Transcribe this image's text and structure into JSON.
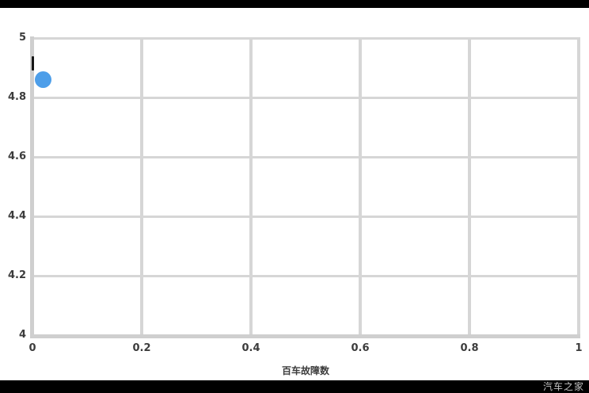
{
  "chart_data": {
    "type": "scatter",
    "title": "",
    "xlabel": "百车故障数",
    "ylabel": "",
    "xlim": [
      0,
      1
    ],
    "ylim": [
      4,
      5
    ],
    "grid": true,
    "legend": false,
    "x_ticks": {
      "values": [
        0,
        0.2,
        0.4,
        0.6,
        0.8,
        1
      ],
      "labels": [
        "0",
        "0.2",
        "0.4",
        "0.6",
        "0.8",
        "1"
      ]
    },
    "y_ticks": {
      "values": [
        4,
        4.2,
        4.4,
        4.6,
        4.8,
        5
      ],
      "labels": [
        "4",
        "4.2",
        "4.4",
        "4.6",
        "4.8",
        "5"
      ]
    },
    "series": [
      {
        "name": "rating-point",
        "type": "scatter",
        "color": "#4d9ee9",
        "points": [
          {
            "x": 0.02,
            "y": 4.86
          }
        ]
      },
      {
        "name": "marker-dash",
        "type": "vline",
        "color": "#161616",
        "x": 0,
        "y_top": 4.94,
        "y_bottom": 4.89
      }
    ],
    "colors": {
      "gridline": "#d6d6d6",
      "axis": "#cfcfcf",
      "tick_text": "#3c3c3c",
      "background": "#ffffff"
    }
  },
  "letterbox": {
    "top_bar_color": "#000000",
    "bottom_bar_color": "#000000"
  },
  "watermark": {
    "text": "汽车之家",
    "color": "#c2c2c2"
  }
}
